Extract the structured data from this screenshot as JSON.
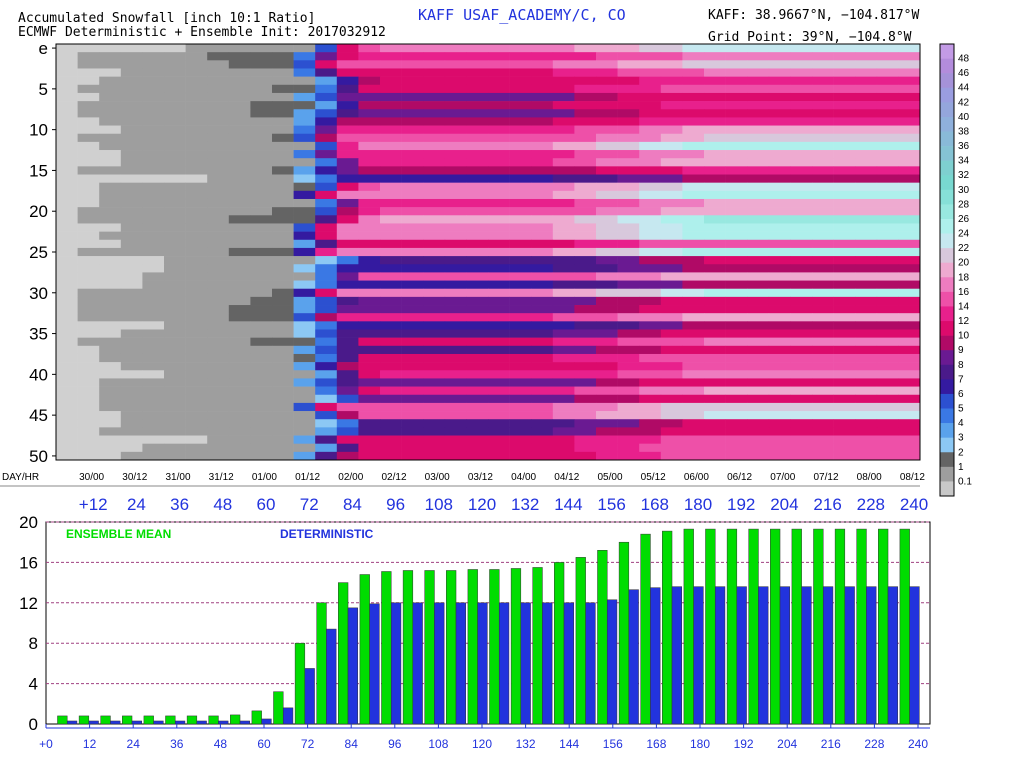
{
  "header": {
    "title_line1": "Accumulated Snowfall [inch 10:1 Ratio]",
    "title_line2": "ECMWF Deterministic + Ensemble Init: 2017032912",
    "station": "KAFF USAF_ACADEMY/C, CO",
    "coords": "KAFF: 38.9667°N, −104.817°W",
    "grid_point": "Grid Point: 39°N, −104.8°W"
  },
  "chart_data": [
    {
      "type": "heatmap",
      "title": "Accumulated Snowfall [inch 10:1 Ratio]",
      "ylabel": "",
      "y_tick_labels": [
        "e",
        "5",
        "10",
        "15",
        "20",
        "25",
        "30",
        "35",
        "40",
        "45",
        "50"
      ],
      "x_day_label": "DAY/HR",
      "x_day_ticks": [
        "30/00",
        "30/12",
        "31/00",
        "31/12",
        "01/00",
        "01/12",
        "02/00",
        "02/12",
        "03/00",
        "03/12",
        "04/00",
        "04/12",
        "05/00",
        "05/12",
        "06/00",
        "06/12",
        "07/00",
        "07/12",
        "08/00",
        "08/12"
      ],
      "x_hour_ticks": [
        "+12",
        "24",
        "36",
        "48",
        "60",
        "72",
        "84",
        "96",
        "108",
        "120",
        "132",
        "144",
        "156",
        "168",
        "180",
        "192",
        "204",
        "216",
        "228",
        "240"
      ],
      "colorbar": {
        "labels": [
          "48",
          "46",
          "44",
          "42",
          "40",
          "38",
          "36",
          "34",
          "32",
          "30",
          "28",
          "26",
          "24",
          "22",
          "20",
          "18",
          "16",
          "14",
          "12",
          "10",
          "9",
          "8",
          "7",
          "6",
          "5",
          "4",
          "3",
          "2",
          "1",
          "0.1"
        ],
        "colors": [
          "#c39be6",
          "#b38cdc",
          "#a592d9",
          "#9a9de0",
          "#94a6dc",
          "#8fb0dc",
          "#89bad8",
          "#85c3d4",
          "#7ed0d0",
          "#78d8d0",
          "#86e0d8",
          "#98e8e0",
          "#aef0ec",
          "#c6e8f0",
          "#d8c8dc",
          "#eeaad0",
          "#ee7cc0",
          "#ee50a8",
          "#e8208c",
          "#dc0a6c",
          "#b00a66",
          "#6a1a92",
          "#4a1a8a",
          "#341aa0",
          "#2c50d0",
          "#3a78e4",
          "#5aa2ec",
          "#8cc8f4",
          "#646464",
          "#9e9e9e",
          "#c8c8c8"
        ]
      },
      "members": 51,
      "time_steps": 40
    },
    {
      "type": "bar",
      "series": [
        {
          "name": "ENSEMBLE MEAN",
          "color": "#00dd00",
          "values": [
            0.8,
            0.8,
            0.8,
            0.8,
            0.8,
            0.8,
            0.8,
            0.8,
            0.9,
            1.3,
            3.2,
            8.0,
            12.0,
            14.0,
            14.8,
            15.1,
            15.2,
            15.2,
            15.2,
            15.3,
            15.3,
            15.4,
            15.5,
            16.0,
            16.5,
            17.2,
            18.0,
            18.8,
            19.1,
            19.3,
            19.3,
            19.3,
            19.3,
            19.3,
            19.3,
            19.3,
            19.3,
            19.3,
            19.3,
            19.3
          ]
        },
        {
          "name": "DETERMINISTIC",
          "color": "#2233dd",
          "values": [
            0.3,
            0.3,
            0.3,
            0.3,
            0.3,
            0.3,
            0.3,
            0.3,
            0.3,
            0.5,
            1.6,
            5.5,
            9.4,
            11.5,
            11.9,
            12.0,
            12.0,
            12.0,
            12.0,
            12.0,
            12.0,
            12.0,
            12.0,
            12.0,
            12.0,
            12.3,
            13.3,
            13.5,
            13.6,
            13.6,
            13.6,
            13.6,
            13.6,
            13.6,
            13.6,
            13.6,
            13.6,
            13.6,
            13.6,
            13.6
          ]
        }
      ],
      "x_tick_labels": [
        "+0",
        "12",
        "24",
        "36",
        "48",
        "60",
        "72",
        "84",
        "96",
        "108",
        "120",
        "132",
        "144",
        "156",
        "168",
        "180",
        "192",
        "204",
        "216",
        "228",
        "240"
      ],
      "y_tick_labels": [
        "0",
        "4",
        "8",
        "12",
        "16",
        "20"
      ],
      "ylim": [
        0,
        20
      ],
      "grid": true
    }
  ]
}
